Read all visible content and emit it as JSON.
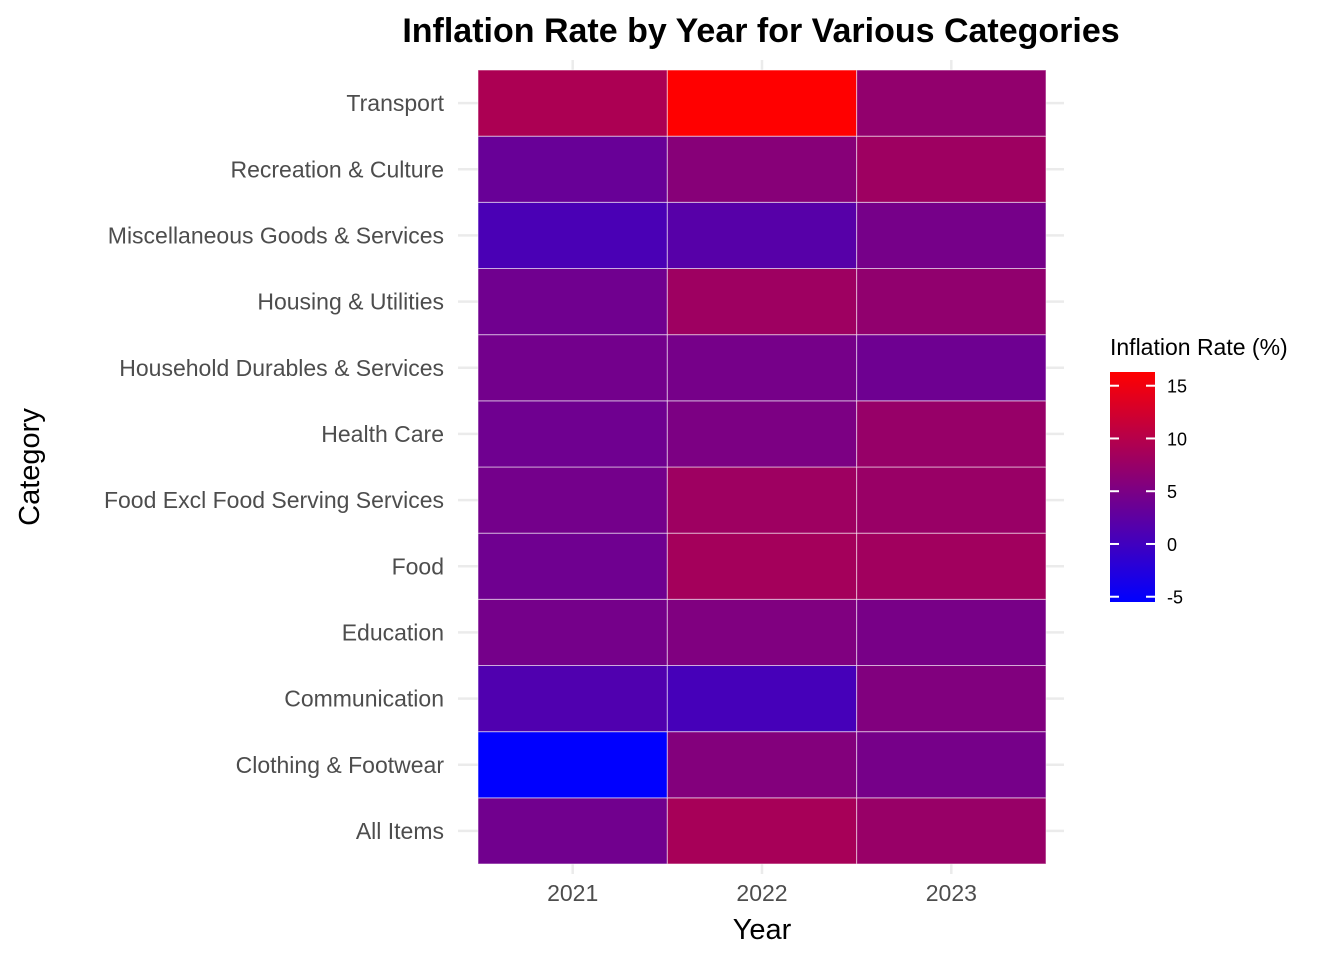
{
  "chart_data": {
    "type": "heatmap",
    "title": "Inflation Rate by Year for Various Categories",
    "xlabel": "Year",
    "ylabel": "Category",
    "x": [
      "2021",
      "2022",
      "2023"
    ],
    "y": [
      "All Items",
      "Clothing & Footwear",
      "Communication",
      "Education",
      "Food",
      "Food Excl Food Serving Services",
      "Health Care",
      "Household Durables & Services",
      "Housing & Utilities",
      "Miscellaneous Goods & Services",
      "Recreation & Culture",
      "Transport"
    ],
    "values": [
      [
        4.2,
        8.8,
        7.5
      ],
      [
        -5.5,
        5.7,
        4.6
      ],
      [
        1.3,
        0.5,
        5.5
      ],
      [
        4.5,
        5.4,
        4.8
      ],
      [
        4.0,
        8.5,
        8.3
      ],
      [
        4.4,
        8.0,
        7.6
      ],
      [
        4.0,
        5.1,
        7.4
      ],
      [
        4.3,
        4.6,
        3.9
      ],
      [
        4.1,
        8.0,
        6.9
      ],
      [
        0.8,
        1.9,
        4.6
      ],
      [
        3.4,
        6.0,
        8.0
      ],
      [
        9.2,
        16.3,
        7.0
      ]
    ],
    "legend": {
      "title": "Inflation Rate (%)",
      "ticks": [
        -5,
        0,
        5,
        10,
        15
      ],
      "range": [
        -5.5,
        16.3
      ],
      "placement": "right",
      "colors": {
        "low": "#0000ff",
        "high": "#ff0000"
      }
    },
    "grid": true
  }
}
